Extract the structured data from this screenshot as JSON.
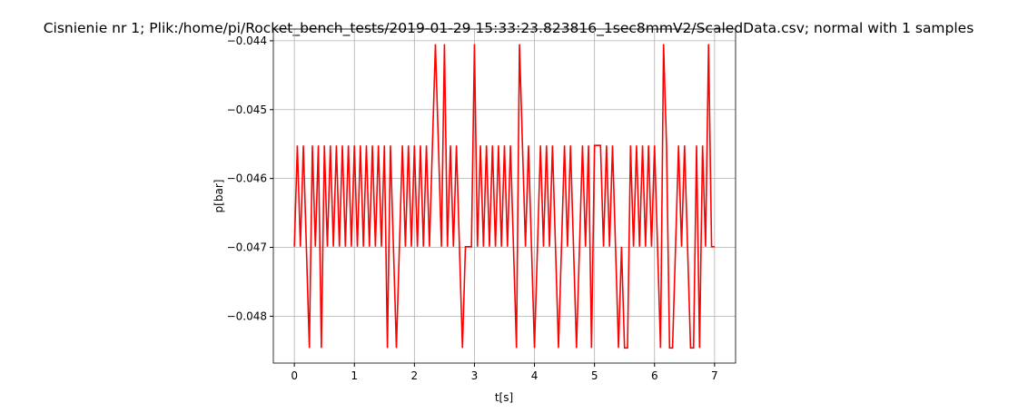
{
  "chart_data": {
    "type": "line",
    "title": "Cisnienie nr 1; Plik:/home/pi/Rocket_bench_tests/2019-01-29 15:33:23.823816_1sec8mmV2/ScaledData.csv; normal with 1 samples",
    "xlabel": "t[s]",
    "ylabel": "p[bar]",
    "grid": true,
    "xlim": [
      -0.35,
      7.35
    ],
    "ylim": [
      -0.04868,
      -0.04383
    ],
    "xticks": [
      0,
      1,
      2,
      3,
      4,
      5,
      6,
      7
    ],
    "yticks": [
      {
        "value": -0.048,
        "label": "−0.048"
      },
      {
        "value": -0.047,
        "label": "−0.047"
      },
      {
        "value": -0.046,
        "label": "−0.046"
      },
      {
        "value": -0.045,
        "label": "−0.045"
      },
      {
        "value": -0.044,
        "label": "−0.044"
      }
    ],
    "x": [
      0,
      0.05,
      0.1,
      0.15,
      0.2,
      0.25,
      0.3,
      0.35,
      0.4,
      0.45,
      0.5,
      0.55,
      0.6,
      0.65,
      0.7,
      0.75,
      0.8,
      0.85,
      0.9,
      0.95,
      1,
      1.05,
      1.1,
      1.15,
      1.2,
      1.25,
      1.3,
      1.35,
      1.4,
      1.45,
      1.5,
      1.55,
      1.6,
      1.65,
      1.7,
      1.75,
      1.8,
      1.85,
      1.9,
      1.95,
      2,
      2.05,
      2.1,
      2.15,
      2.2,
      2.25,
      2.3,
      2.35,
      2.4,
      2.45,
      2.5,
      2.55,
      2.6,
      2.65,
      2.7,
      2.75,
      2.8,
      2.85,
      2.9,
      2.95,
      3,
      3.05,
      3.1,
      3.15,
      3.2,
      3.25,
      3.3,
      3.35,
      3.4,
      3.45,
      3.5,
      3.55,
      3.6,
      3.65,
      3.7,
      3.75,
      3.8,
      3.85,
      3.9,
      3.95,
      4,
      4.05,
      4.1,
      4.15,
      4.2,
      4.25,
      4.3,
      4.35,
      4.4,
      4.45,
      4.5,
      4.55,
      4.6,
      4.65,
      4.7,
      4.75,
      4.8,
      4.85,
      4.9,
      4.95,
      5,
      5.05,
      5.1,
      5.15,
      5.2,
      5.25,
      5.3,
      5.35,
      5.4,
      5.45,
      5.5,
      5.55,
      5.6,
      5.65,
      5.7,
      5.75,
      5.8,
      5.85,
      5.9,
      5.95,
      6,
      6.05,
      6.1,
      6.15,
      6.2,
      6.25,
      6.3,
      6.35,
      6.4,
      6.45,
      6.5,
      6.55,
      6.6,
      6.65,
      6.7,
      6.75,
      6.8,
      6.85,
      6.9,
      6.95,
      7
    ],
    "series": [
      {
        "color": "#ff0000",
        "values": [
          -0.04699,
          -0.04552,
          -0.04699,
          -0.04552,
          -0.04699,
          -0.04846,
          -0.04552,
          -0.04699,
          -0.04552,
          -0.04846,
          -0.04552,
          -0.04699,
          -0.04552,
          -0.04699,
          -0.04552,
          -0.04699,
          -0.04552,
          -0.04699,
          -0.04552,
          -0.04699,
          -0.04552,
          -0.04699,
          -0.04552,
          -0.04699,
          -0.04552,
          -0.04699,
          -0.04552,
          -0.04699,
          -0.04552,
          -0.04699,
          -0.04552,
          -0.04846,
          -0.04552,
          -0.04699,
          -0.04846,
          -0.04699,
          -0.04552,
          -0.04699,
          -0.04552,
          -0.04699,
          -0.04552,
          -0.04699,
          -0.04552,
          -0.04699,
          -0.04552,
          -0.04699,
          -0.04552,
          -0.04405,
          -0.04552,
          -0.04699,
          -0.04405,
          -0.04699,
          -0.04552,
          -0.04699,
          -0.04552,
          -0.04699,
          -0.04846,
          -0.04699,
          -0.04699,
          -0.04699,
          -0.04405,
          -0.04699,
          -0.04552,
          -0.04699,
          -0.04552,
          -0.04699,
          -0.04552,
          -0.04699,
          -0.04552,
          -0.04699,
          -0.04552,
          -0.04699,
          -0.04552,
          -0.04699,
          -0.04846,
          -0.04405,
          -0.04552,
          -0.04699,
          -0.04552,
          -0.04699,
          -0.04846,
          -0.04699,
          -0.04552,
          -0.04699,
          -0.04552,
          -0.04699,
          -0.04552,
          -0.04699,
          -0.04846,
          -0.04699,
          -0.04552,
          -0.04699,
          -0.04552,
          -0.04699,
          -0.04846,
          -0.04699,
          -0.04552,
          -0.04699,
          -0.04552,
          -0.04846,
          -0.04552,
          -0.04552,
          -0.04552,
          -0.04699,
          -0.04552,
          -0.04699,
          -0.04552,
          -0.04699,
          -0.04846,
          -0.04699,
          -0.04846,
          -0.04846,
          -0.04552,
          -0.04699,
          -0.04552,
          -0.04699,
          -0.04552,
          -0.04699,
          -0.04552,
          -0.04699,
          -0.04552,
          -0.04699,
          -0.04846,
          -0.04405,
          -0.04552,
          -0.04846,
          -0.04846,
          -0.04699,
          -0.04552,
          -0.04699,
          -0.04552,
          -0.04699,
          -0.04846,
          -0.04846,
          -0.04552,
          -0.04846,
          -0.04552,
          -0.04699,
          -0.04405,
          -0.04699,
          -0.04699
        ]
      }
    ]
  }
}
